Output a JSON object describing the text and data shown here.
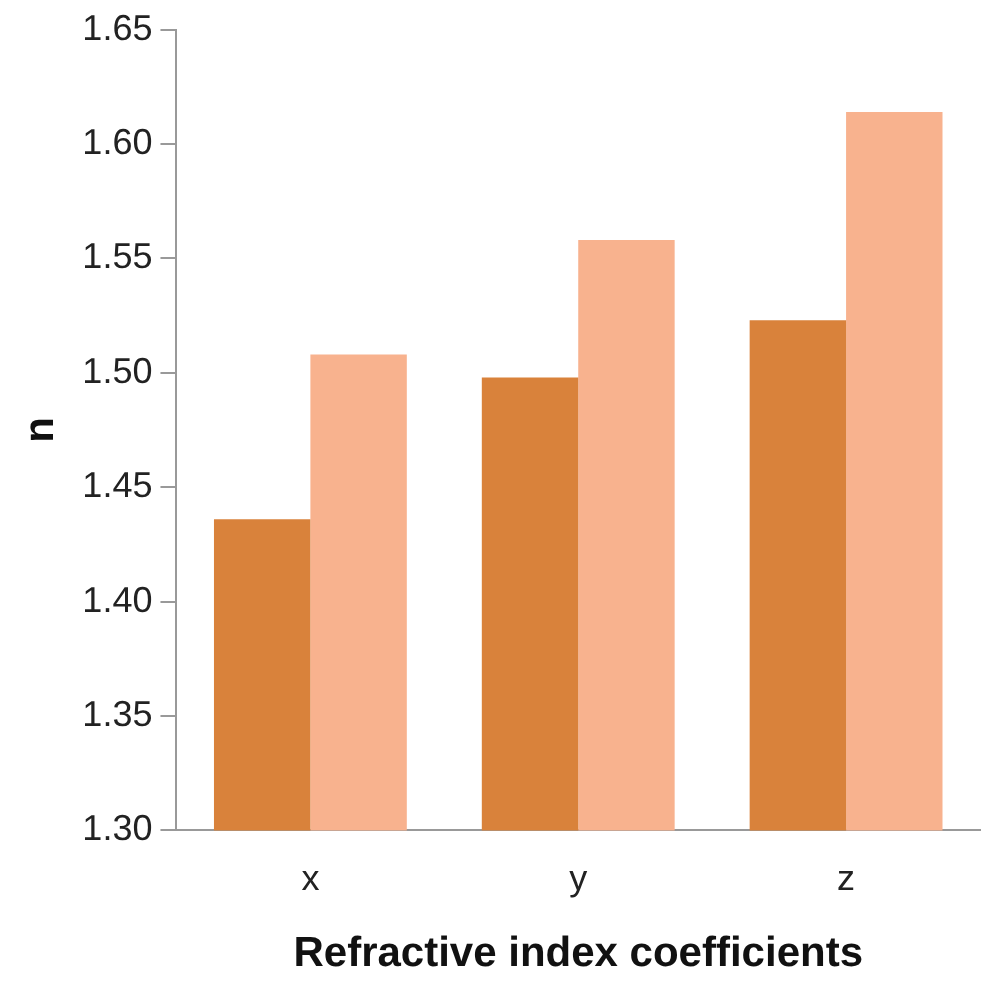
{
  "chart_data": {
    "type": "bar",
    "xlabel": "Refractive index coefficients",
    "ylabel": "n",
    "categories": [
      "x",
      "y",
      "z"
    ],
    "series": [
      {
        "color": "#d9823b",
        "values": [
          1.436,
          1.498,
          1.523
        ]
      },
      {
        "color": "#f8b28e",
        "values": [
          1.508,
          1.558,
          1.614
        ]
      }
    ],
    "ylim": [
      1.3,
      1.65
    ],
    "yticks": [
      {
        "value": 1.3,
        "label": "1.30"
      },
      {
        "value": 1.35,
        "label": "1.35"
      },
      {
        "value": 1.4,
        "label": "1.40"
      },
      {
        "value": 1.45,
        "label": "1.45"
      },
      {
        "value": 1.5,
        "label": "1.50"
      },
      {
        "value": 1.55,
        "label": "1.55"
      },
      {
        "value": 1.6,
        "label": "1.60"
      },
      {
        "value": 1.65,
        "label": "1.65"
      }
    ],
    "grid": false,
    "legend": false
  }
}
